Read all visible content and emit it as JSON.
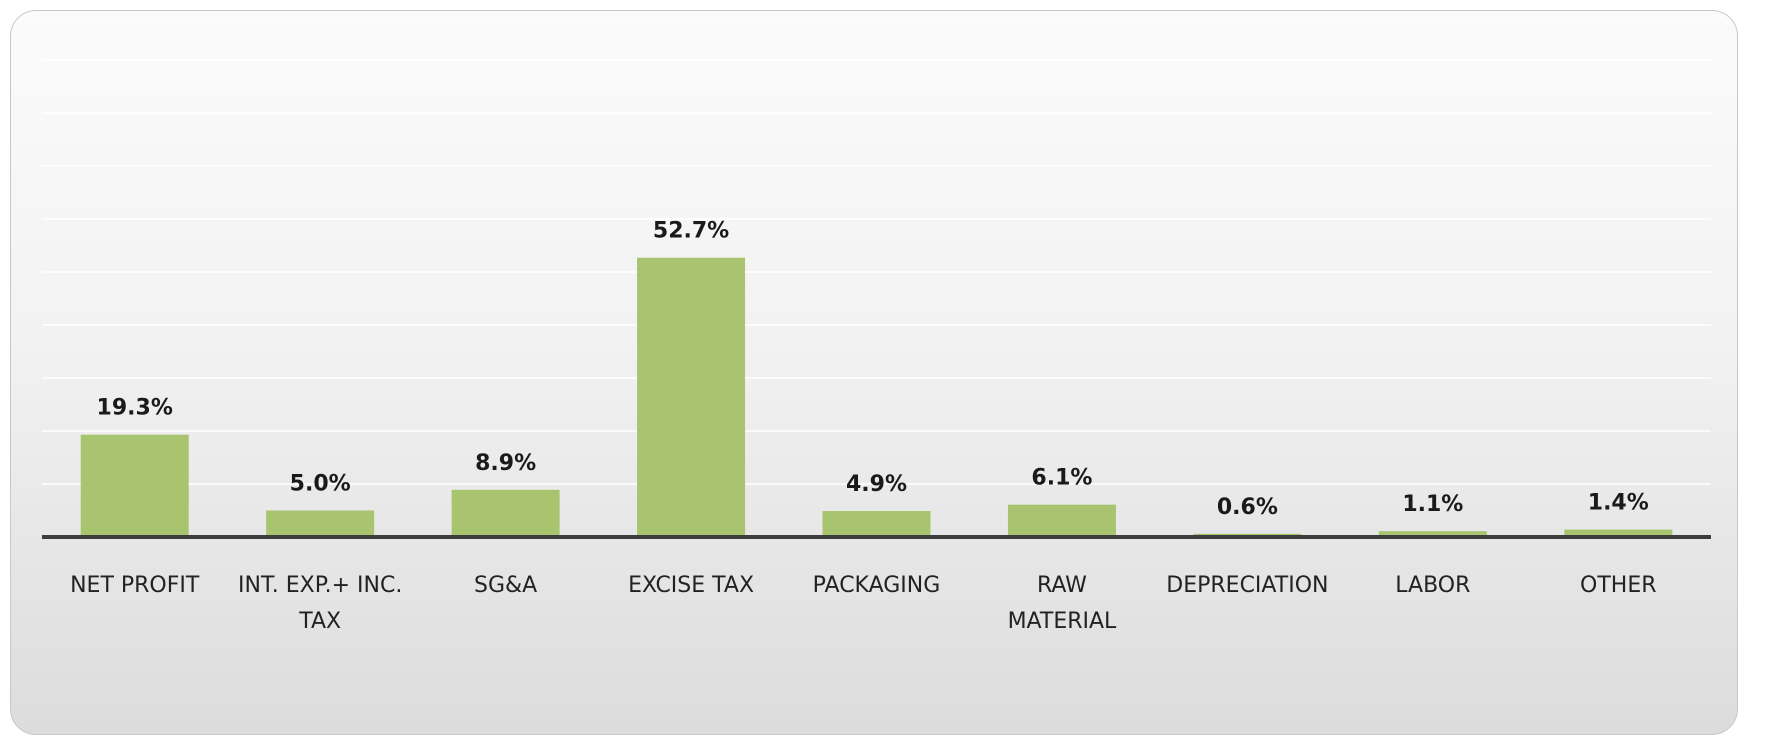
{
  "chart_data": {
    "type": "bar",
    "categories": [
      [
        "NET PROFIT"
      ],
      [
        "INT. EXP.+ INC.",
        "TAX"
      ],
      [
        "SG&A"
      ],
      [
        "EXCISE TAX"
      ],
      [
        "PACKAGING"
      ],
      [
        "RAW",
        "MATERIAL"
      ],
      [
        "DEPRECIATION"
      ],
      [
        "LABOR"
      ],
      [
        "OTHER"
      ]
    ],
    "values": [
      19.3,
      5.0,
      8.9,
      52.7,
      4.9,
      6.1,
      0.6,
      1.1,
      1.4
    ],
    "data_labels": [
      "19.3%",
      "5.0%",
      "8.9%",
      "52.7%",
      "4.9%",
      "6.1%",
      "0.6%",
      "1.1%",
      "1.4%"
    ],
    "title": "",
    "xlabel": "",
    "ylabel": "",
    "ylim": [
      0,
      90
    ],
    "grid": true,
    "legend": "none",
    "bar_color": "#a9c46f",
    "axis_color": "#3c3c3c"
  }
}
